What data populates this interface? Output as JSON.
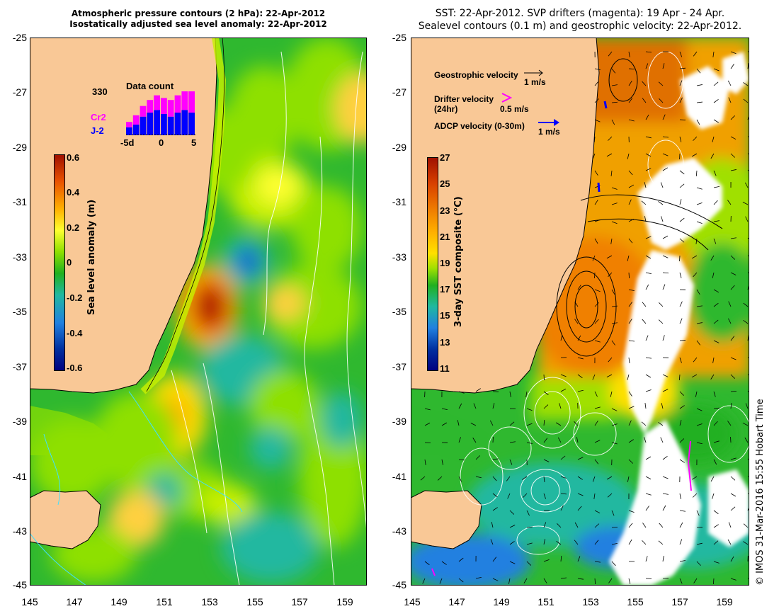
{
  "left_panel": {
    "title_line1": "Atmospheric pressure contours (2 hPa): 22-Apr-2012",
    "title_line2": "Isostatically adjusted sea level anomaly: 22-Apr-2012",
    "y_ticks": [
      "-25",
      "-27",
      "-29",
      "-31",
      "-33",
      "-35",
      "-37",
      "-39",
      "-41",
      "-43",
      "-45"
    ],
    "x_ticks": [
      "145",
      "147",
      "149",
      "151",
      "153",
      "155",
      "157",
      "159"
    ],
    "colorbar": {
      "label": "Sea level anomaly (m)",
      "ticks": [
        "0.6",
        "0.4",
        "0.2",
        "0",
        "-0.2",
        "-0.4",
        "-0.6"
      ],
      "colors": [
        "#a01000",
        "#e85000",
        "#ffb000",
        "#ffff30",
        "#8ee000",
        "#20b020",
        "#20b8a0",
        "#2080e0",
        "#0030a0",
        "#000080"
      ]
    },
    "inset": {
      "title": "Data count",
      "max_label": "330",
      "series": [
        {
          "name": "Cr2",
          "color": "#ff00ff",
          "values": [
            40,
            70,
            80,
            95,
            110,
            120,
            125,
            130,
            140,
            160
          ]
        },
        {
          "name": "J-2",
          "color": "#0000ff",
          "values": [
            60,
            80,
            140,
            170,
            190,
            160,
            140,
            170,
            190,
            170
          ]
        }
      ],
      "x_labels": [
        "-5d",
        "0",
        "5"
      ]
    }
  },
  "right_panel": {
    "title_line1": "SST: 22-Apr-2012. SVP drifters (magenta): 19 Apr - 24 Apr.",
    "title_line2": "Sealevel contours (0.1 m) and geostrophic velocity: 22-Apr-2012.",
    "y_ticks": [
      "-25",
      "-27",
      "-29",
      "-31",
      "-33",
      "-35",
      "-37",
      "-39",
      "-41",
      "-43",
      "-45"
    ],
    "x_ticks": [
      "145",
      "147",
      "149",
      "151",
      "153",
      "155",
      "157",
      "159"
    ],
    "colorbar": {
      "label": "3-day SST composite (°C)",
      "ticks": [
        "27",
        "25",
        "23",
        "21",
        "19",
        "17",
        "15",
        "13",
        "11"
      ],
      "colors": [
        "#a01000",
        "#d84000",
        "#f08000",
        "#ffb000",
        "#ffe000",
        "#a0e000",
        "#20b020",
        "#20b8a0",
        "#2080e0",
        "#0030a0",
        "#000080"
      ]
    },
    "legend": {
      "geo_label": "Geostrophic velocity",
      "geo_scale": "1 m/s",
      "drifter_label": "Drifter velocity",
      "drifter_sub": "(24hr)",
      "drifter_scale": "0.5 m/s",
      "adcp_label": "ADCP velocity (0-30m)",
      "adcp_scale": "1 m/s"
    }
  },
  "credit": "© IMOS 31-Mar-2016 15:55 Hobart Time",
  "colors": {
    "land": "#f9c896",
    "ocean_green": "#2fb82f",
    "ocean_lime": "#8ee000",
    "ocean_yellow": "#ffff30",
    "ocean_orange": "#f0a000",
    "ocean_cyan": "#20b8a0",
    "ocean_blue": "#2080e0",
    "cloud": "#ffffff"
  }
}
